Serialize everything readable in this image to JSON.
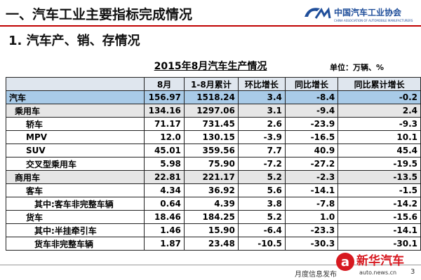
{
  "header": {
    "title": "一、汽车工业主要指标完成情况",
    "logo_text": "中国汽车工业协会",
    "logo_subtext": "CHINA ASSOCIATION OF AUTOMOBILE MANUFACTURERS"
  },
  "subtitle": "1. 汽车产、销、存情况",
  "table": {
    "title": "2015年8月汽车生产情况",
    "unit": "单位：万辆、%",
    "columns": [
      "8月",
      "1-8月累计",
      "环比增长",
      "同比增长",
      "同比累计增长"
    ],
    "rows": [
      [
        "汽车",
        "156.97",
        "1518.24",
        "3.4",
        "-8.4",
        "-0.2"
      ],
      [
        "乘用车",
        "134.16",
        "1297.06",
        "3.1",
        "-9.4",
        "2.4"
      ],
      [
        "轿车",
        "71.17",
        "731.45",
        "2.6",
        "-23.9",
        "-9.3"
      ],
      [
        "MPV",
        "12.0",
        "130.15",
        "-3.9",
        "-16.5",
        "10.1"
      ],
      [
        "SUV",
        "45.01",
        "359.56",
        "7.7",
        "40.9",
        "45.4"
      ],
      [
        "交叉型乘用车",
        "5.98",
        "75.90",
        "-7.2",
        "-27.2",
        "-19.5"
      ],
      [
        "商用车",
        "22.81",
        "221.17",
        "5.2",
        "-2.3",
        "-13.5"
      ],
      [
        "客车",
        "4.34",
        "36.92",
        "5.6",
        "-14.1",
        "-1.5"
      ],
      [
        "其中:客车非完整车辆",
        "0.64",
        "4.39",
        "3.8",
        "-7.8",
        "-14.2"
      ],
      [
        "货车",
        "18.46",
        "184.25",
        "5.2",
        "1.0",
        "-15.6"
      ],
      [
        "其中:半挂牵引车",
        "1.46",
        "15.90",
        "-6.4",
        "-23.3",
        "-14.1"
      ],
      [
        "货车非完整车辆",
        "1.87",
        "23.48",
        "-10.5",
        "-30.3",
        "-30.1"
      ]
    ]
  },
  "footer": {
    "text": "月度信息发布",
    "page": "3"
  },
  "watermark": {
    "brand": "新华汽车",
    "url": "auto.news.cn"
  }
}
